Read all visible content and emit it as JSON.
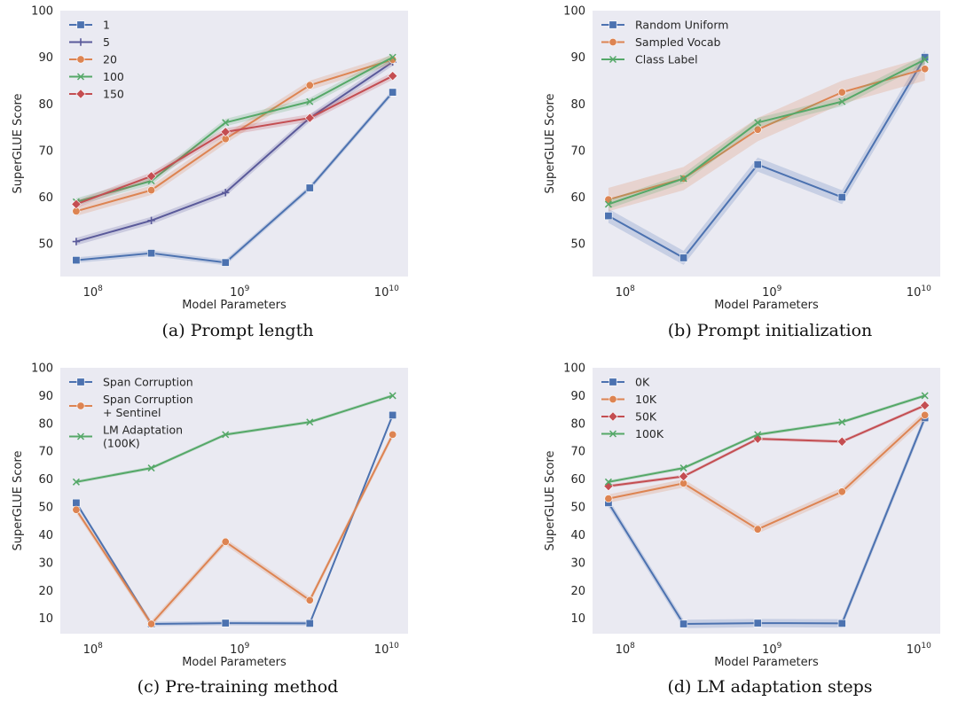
{
  "chart_data": [
    {
      "id": "a",
      "type": "line",
      "caption": "(a) Prompt length",
      "title": "",
      "xlabel": "Model Parameters",
      "ylabel": "SuperGLUE Score",
      "xscale": "log",
      "x": [
        77000000,
        250000000,
        800000000,
        3000000000,
        11000000000
      ],
      "xticks": [
        {
          "value": 100000000,
          "base": "10",
          "exp": "8"
        },
        {
          "value": 1000000000,
          "base": "10",
          "exp": "9"
        },
        {
          "value": 10000000000,
          "base": "10",
          "exp": "10"
        }
      ],
      "xlim": [
        60000000,
        14000000000
      ],
      "ylim": [
        43,
        100
      ],
      "yticks": [
        50,
        60,
        70,
        80,
        90,
        100
      ],
      "grid": false,
      "legend": "top-left",
      "series": [
        {
          "name": "1",
          "color": "#4c72b0",
          "marker": "square",
          "values": [
            46.5,
            48.0,
            46.0,
            62.0,
            82.5
          ],
          "band": 0.6
        },
        {
          "name": "5",
          "color": "#5a5a9a",
          "marker": "plus",
          "values": [
            50.5,
            55.0,
            61.0,
            77.0,
            89.0
          ],
          "band": 0.8
        },
        {
          "name": "20",
          "color": "#dd8452",
          "marker": "circle",
          "values": [
            57.0,
            61.5,
            72.5,
            84.0,
            89.5
          ],
          "band": 1.0
        },
        {
          "name": "100",
          "color": "#55a868",
          "marker": "x",
          "values": [
            59.0,
            63.5,
            76.0,
            80.5,
            90.0
          ],
          "band": 0.8
        },
        {
          "name": "150",
          "color": "#c44e52",
          "marker": "diamond",
          "values": [
            58.5,
            64.5,
            74.0,
            77.0,
            86.0
          ],
          "band": 0.8
        }
      ]
    },
    {
      "id": "b",
      "type": "line",
      "caption": "(b) Prompt initialization",
      "title": "",
      "xlabel": "Model Parameters",
      "ylabel": "SuperGLUE Score",
      "xscale": "log",
      "x": [
        77000000,
        250000000,
        800000000,
        3000000000,
        11000000000
      ],
      "xticks": [
        {
          "value": 100000000,
          "base": "10",
          "exp": "8"
        },
        {
          "value": 1000000000,
          "base": "10",
          "exp": "9"
        },
        {
          "value": 10000000000,
          "base": "10",
          "exp": "10"
        }
      ],
      "xlim": [
        60000000,
        14000000000
      ],
      "ylim": [
        43,
        100
      ],
      "yticks": [
        50,
        60,
        70,
        80,
        90,
        100
      ],
      "grid": false,
      "legend": "top-left",
      "series": [
        {
          "name": "Random Uniform",
          "color": "#4c72b0",
          "marker": "square",
          "values": [
            56.0,
            47.0,
            67.0,
            60.0,
            90.0
          ],
          "band": 1.5
        },
        {
          "name": "Sampled Vocab",
          "color": "#dd8452",
          "marker": "circle",
          "values": [
            59.5,
            64.0,
            74.5,
            82.5,
            87.5
          ],
          "band": 2.5
        },
        {
          "name": "Class Label",
          "color": "#55a868",
          "marker": "x",
          "values": [
            58.5,
            64.0,
            76.0,
            80.5,
            89.5
          ],
          "band": 1.0
        }
      ]
    },
    {
      "id": "c",
      "type": "line",
      "caption": "(c) Pre-training method",
      "title": "",
      "xlabel": "Model Parameters",
      "ylabel": "SuperGLUE Score",
      "xscale": "log",
      "x": [
        77000000,
        250000000,
        800000000,
        3000000000,
        11000000000
      ],
      "xticks": [
        {
          "value": 100000000,
          "base": "10",
          "exp": "8"
        },
        {
          "value": 1000000000,
          "base": "10",
          "exp": "9"
        },
        {
          "value": 10000000000,
          "base": "10",
          "exp": "10"
        }
      ],
      "xlim": [
        60000000,
        14000000000
      ],
      "ylim": [
        4.5,
        100
      ],
      "yticks": [
        10,
        20,
        30,
        40,
        50,
        60,
        70,
        80,
        90,
        100
      ],
      "grid": false,
      "legend": "top-left",
      "series": [
        {
          "name": "Span Corruption",
          "color": "#4c72b0",
          "marker": "square",
          "values": [
            51.5,
            8.0,
            8.3,
            8.2,
            83.0
          ],
          "band": 0.8
        },
        {
          "name": "Span Corruption\n+ Sentinel",
          "color": "#dd8452",
          "marker": "circle",
          "values": [
            49.0,
            8.0,
            37.5,
            16.5,
            76.0
          ],
          "band": 1.2
        },
        {
          "name": "LM Adaptation\n(100K)",
          "color": "#55a868",
          "marker": "x",
          "values": [
            59.0,
            64.0,
            76.0,
            80.5,
            90.0
          ],
          "band": 0.6
        }
      ]
    },
    {
      "id": "d",
      "type": "line",
      "caption": "(d) LM adaptation steps",
      "title": "",
      "xlabel": "Model Parameters",
      "ylabel": "SuperGLUE Score",
      "xscale": "log",
      "x": [
        77000000,
        250000000,
        800000000,
        3000000000,
        11000000000
      ],
      "xticks": [
        {
          "value": 100000000,
          "base": "10",
          "exp": "8"
        },
        {
          "value": 1000000000,
          "base": "10",
          "exp": "9"
        },
        {
          "value": 10000000000,
          "base": "10",
          "exp": "10"
        }
      ],
      "xlim": [
        60000000,
        14000000000
      ],
      "ylim": [
        4.5,
        100
      ],
      "yticks": [
        10,
        20,
        30,
        40,
        50,
        60,
        70,
        80,
        90,
        100
      ],
      "grid": false,
      "legend": "top-left",
      "series": [
        {
          "name": "0K",
          "color": "#4c72b0",
          "marker": "square",
          "values": [
            51.5,
            8.0,
            8.3,
            8.2,
            82.0
          ],
          "band": 1.5
        },
        {
          "name": "10K",
          "color": "#dd8452",
          "marker": "circle",
          "values": [
            53.0,
            58.5,
            42.0,
            55.5,
            83.0
          ],
          "band": 1.5
        },
        {
          "name": "50K",
          "color": "#c44e52",
          "marker": "diamond",
          "values": [
            57.5,
            61.0,
            74.5,
            73.5,
            86.5
          ],
          "band": 0.6
        },
        {
          "name": "100K",
          "color": "#55a868",
          "marker": "x",
          "values": [
            59.0,
            64.0,
            76.0,
            80.5,
            90.0
          ],
          "band": 0.6
        }
      ]
    }
  ]
}
